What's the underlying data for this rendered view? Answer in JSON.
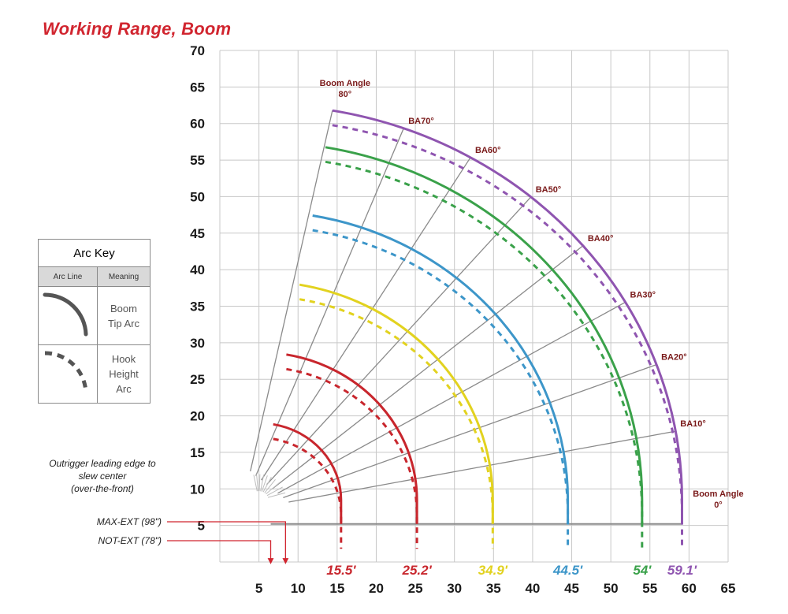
{
  "title": "Working Range, Boom",
  "chart_data": {
    "type": "line",
    "title": "Working Range, Boom",
    "xlim": [
      0,
      65
    ],
    "ylim": [
      0,
      70
    ],
    "x_ticks": [
      5,
      10,
      15,
      20,
      25,
      30,
      35,
      40,
      45,
      50,
      55,
      60,
      65
    ],
    "y_ticks": [
      5,
      10,
      15,
      20,
      25,
      30,
      35,
      40,
      45,
      50,
      55,
      60,
      65,
      70
    ],
    "grid": true,
    "pivot": [
      5,
      8.5
    ],
    "boom_angles": [
      {
        "label": "Boom Angle",
        "angle_label": "80°",
        "angle": 80
      },
      {
        "label": "BA70°",
        "angle": 70
      },
      {
        "label": "BA60°",
        "angle": 60
      },
      {
        "label": "BA50°",
        "angle": 50
      },
      {
        "label": "BA40°",
        "angle": 40
      },
      {
        "label": "BA30°",
        "angle": 30
      },
      {
        "label": "BA20°",
        "angle": 20
      },
      {
        "label": "BA10°",
        "angle": 10
      },
      {
        "label": "Boom Angle",
        "angle_label": "0°",
        "angle": 0
      }
    ],
    "series": [
      {
        "reach_label": "15.5'",
        "color": "#c8262d",
        "tip_radius": 10.5,
        "hook_radius": 10.5,
        "hook_drop": 2.0
      },
      {
        "reach_label": "25.2'",
        "color": "#c8262d",
        "tip_radius": 20.2,
        "hook_radius": 20.2,
        "hook_drop": 2.0
      },
      {
        "reach_label": "34.9'",
        "color": "#e2d21f",
        "tip_radius": 29.9,
        "hook_radius": 29.9,
        "hook_drop": 2.0
      },
      {
        "reach_label": "44.5'",
        "color": "#3d96c9",
        "tip_radius": 39.5,
        "hook_radius": 39.5,
        "hook_drop": 2.0
      },
      {
        "reach_label": "54'",
        "color": "#3aa14a",
        "tip_radius": 49.0,
        "hook_radius": 49.0,
        "hook_drop": 2.0
      },
      {
        "reach_label": "59.1'",
        "color": "#8f55b0",
        "tip_radius": 54.1,
        "hook_radius": 54.1,
        "hook_drop": 2.0
      }
    ],
    "boom_line_color": "#8a8a8a"
  },
  "arc_key": {
    "title": "Arc Key",
    "col_arc_line": "Arc Line",
    "col_meaning": "Meaning",
    "row1": "Boom Tip Arc",
    "row2": "Hook Height Arc",
    "swatch_color": "#555555"
  },
  "notes": {
    "outrigger": [
      "Outrigger leading edge to",
      "slew center",
      "(over-the-front)"
    ],
    "max_ext": "MAX-EXT (98\")",
    "not_ext": "NOT-EXT (78\")",
    "arrow_color": "#d1252f"
  }
}
